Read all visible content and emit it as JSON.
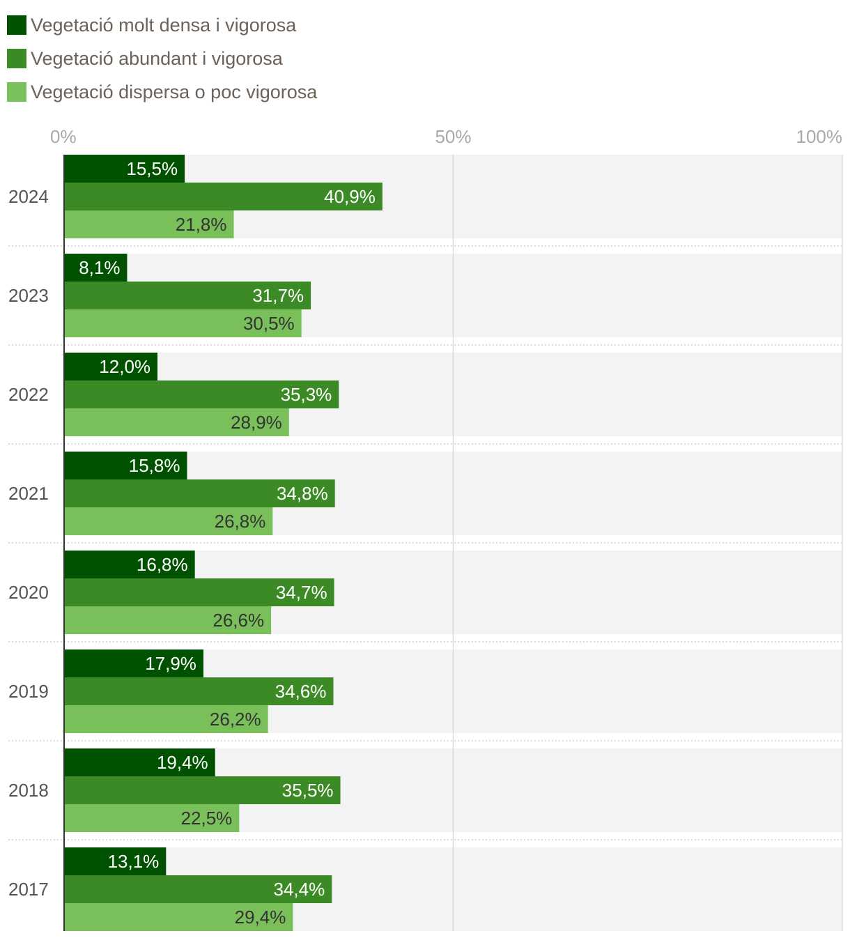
{
  "chart_data": {
    "type": "bar",
    "orientation": "horizontal",
    "categories": [
      "2024",
      "2023",
      "2022",
      "2021",
      "2020",
      "2019",
      "2018",
      "2017"
    ],
    "series": [
      {
        "name": "Vegetació molt densa i vigorosa",
        "color": "#005200",
        "label_color": "#ffffff",
        "values": [
          15.5,
          8.1,
          12.0,
          15.8,
          16.8,
          17.9,
          19.4,
          13.1
        ],
        "labels": [
          "15,5%",
          "8,1%",
          "12,0%",
          "15,8%",
          "16,8%",
          "17,9%",
          "19,4%",
          "13,1%"
        ]
      },
      {
        "name": "Vegetació abundant i vigorosa",
        "color": "#3b8a25",
        "label_color": "#ffffff",
        "values": [
          40.9,
          31.7,
          35.3,
          34.8,
          34.7,
          34.6,
          35.5,
          34.4
        ],
        "labels": [
          "40,9%",
          "31,7%",
          "35,3%",
          "34,8%",
          "34,7%",
          "34,6%",
          "35,5%",
          "34,4%"
        ]
      },
      {
        "name": "Vegetació dispersa o poc vigorosa",
        "color": "#79c05b",
        "label_color": "#333333",
        "values": [
          21.8,
          30.5,
          28.9,
          26.8,
          26.6,
          26.2,
          22.5,
          29.4
        ],
        "labels": [
          "21,8%",
          "30,5%",
          "28,9%",
          "26,8%",
          "26,6%",
          "26,2%",
          "22,5%",
          "29,4%"
        ]
      }
    ],
    "xlim": [
      0,
      100
    ],
    "x_ticks": [
      0,
      50,
      100
    ],
    "x_tick_labels": [
      "0%",
      "50%",
      "100%"
    ],
    "axis_position": "top",
    "legend_position": "top-left",
    "grid": true,
    "title": "",
    "xlabel": "",
    "ylabel": ""
  },
  "colors": {
    "row_background": "#f3f3f3",
    "grid_line": "#d9d9d9",
    "axis_text": "#a9a9a9",
    "category_text": "#555555",
    "separator": "#c8c8c8"
  }
}
